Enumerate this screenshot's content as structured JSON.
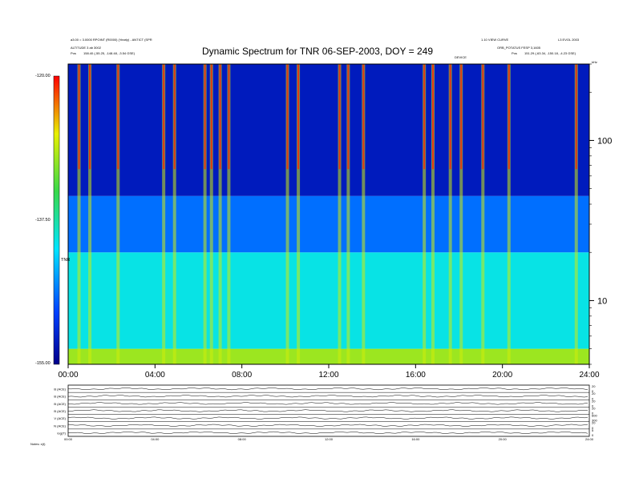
{
  "header": {
    "title": "Dynamic Spectrum for TNR 06-SEP-2003, DOY = 249",
    "left_line1": "a3.00 = 3.0000 RPOINT (R0000) (Yearly) - ANTICT (SPR",
    "left_line2": "ALTITUDE 3 ab 3002",
    "left_line3_a": "Pos",
    "left_line3_b": "158.40 (-55.25, -148.48, -3.54 GSE)",
    "right_line1": "1.10 VIEW CURVE",
    "right_line2": "ORB_POTATUS FESP 3,1605",
    "right_line3_a": "Pos",
    "right_line3_b": "151.29 (-63.34, -150.18, -4.23 GSE)",
    "right_corner": "L3 EVOL 2003",
    "mid_label": "DEVICE",
    "axis_unit_tiny": "kHz",
    "footer_left": "Notes:   x(t)"
  },
  "colorbar": {
    "top_label": "-120.00",
    "mid_label": "-137.50",
    "bottom_label": "-155.00",
    "unit_label": "TNR"
  },
  "chart_data": [
    {
      "type": "heatmap",
      "title": "Dynamic Spectrum for TNR 06-SEP-2003, DOY = 249",
      "x_ticks": [
        "00:00",
        "04:00",
        "08:00",
        "12:00",
        "16:00",
        "20:00",
        "24:00"
      ],
      "x_range_hours": [
        0,
        24
      ],
      "y_scale": "log",
      "y_ticks": [
        100,
        10
      ],
      "y_tick_labels": [
        "100",
        "10"
      ],
      "y_range": [
        4,
        300
      ],
      "color_scale": {
        "min": -155.0,
        "mid": -137.5,
        "max": -120.0,
        "colors": [
          "#00008b",
          "#0040ff",
          "#00e5ff",
          "#37d94a",
          "#e8f000",
          "#ff0000"
        ]
      },
      "bands": [
        {
          "y_range": [
            4,
            5
          ],
          "value": -130
        },
        {
          "y_range": [
            5,
            20
          ],
          "value": -140
        },
        {
          "y_range": [
            20,
            45
          ],
          "value": -146
        },
        {
          "y_range": [
            45,
            300
          ],
          "value": -152
        }
      ],
      "burst_columns_hours": [
        0.5,
        1.0,
        2.3,
        4.4,
        4.9,
        6.3,
        6.6,
        7.0,
        7.4,
        10.1,
        10.6,
        12.5,
        12.9,
        13.6,
        16.4,
        16.8,
        17.6,
        18.1,
        19.1,
        20.3,
        23.4
      ]
    },
    {
      "type": "line",
      "panels": [
        {
          "name": "B (ACE)",
          "ticks": [
            "20",
            "0"
          ]
        },
        {
          "name": "B (ACE)",
          "ticks": [
            "20",
            "0"
          ]
        },
        {
          "name": "B (ACE)",
          "ticks": [
            "20",
            "0"
          ]
        },
        {
          "name": "B (ACE)",
          "ticks": [
            "20",
            "0"
          ]
        },
        {
          "name": "V (ACE)",
          "ticks": [
            "600",
            "300"
          ]
        },
        {
          "name": "N (ACE)",
          "ticks": [
            "20",
            "0"
          ]
        },
        {
          "name": "log(T)",
          "ticks": [
            "5",
            "0"
          ]
        }
      ],
      "x_ticks": [
        "00:00",
        "04:00",
        "08:00",
        "12:00",
        "16:00",
        "20:00",
        "24:00"
      ]
    }
  ]
}
